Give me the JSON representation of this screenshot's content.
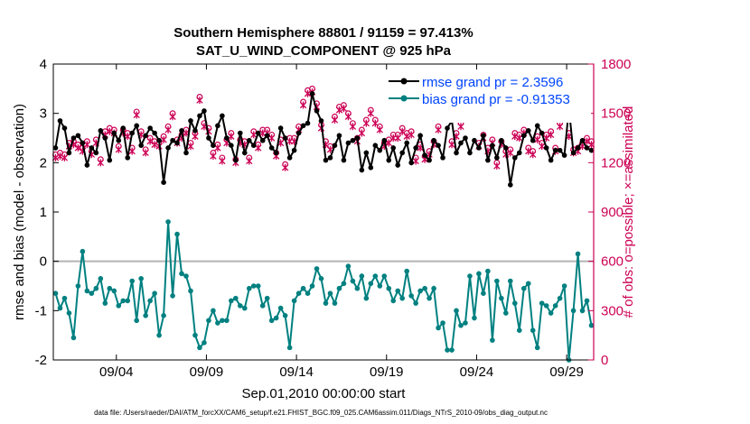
{
  "chart_data": {
    "type": "line",
    "title_line1": "Southern Hemisphere 88801 / 91159 = 97.413%",
    "title_line2": "SAT_U_WIND_COMPONENT @ 925 hPa",
    "xlabel": "Sep.01,2010 00:00:00 start",
    "ylabel_left": "rmse and bias (model - observation)",
    "ylabel_right": "# of obs: o=possible; ×=assimilated",
    "footnote": "data file: /Users/raeder/DAI/ATM_forcXX/CAM6_setup/f.e21.FHIST_BGC.f09_025.CAM6assim.011/Diags_NTrS_2010-09/obs_diag_output.nc",
    "xlim": [
      0,
      30
    ],
    "ylim_left": [
      -2,
      4
    ],
    "ylim_right": [
      0,
      1800
    ],
    "xticks": [
      3.5,
      8.5,
      13.5,
      18.5,
      23.5,
      28.5
    ],
    "xtick_labels": [
      "09/04",
      "09/09",
      "09/14",
      "09/19",
      "09/24",
      "09/29"
    ],
    "yticks_left": [
      -2,
      -1,
      0,
      1,
      2,
      3,
      4
    ],
    "yticks_left_labels": [
      "-2",
      "-1",
      "0",
      "1",
      "2",
      "3",
      "4"
    ],
    "yticks_right": [
      0,
      300,
      600,
      900,
      1200,
      1500,
      1800
    ],
    "yticks_right_labels": [
      "0",
      "300",
      "600",
      "900",
      "1200",
      "1500",
      "1800"
    ],
    "legend": {
      "rmse": "rmse grand pr = 2.3596",
      "bias": "bias grand pr = -0.91353"
    },
    "colors": {
      "rmse": "#000000",
      "bias": "#008080",
      "obs": "#cc0055",
      "zero": "#b3b3b3",
      "legend_text": "#0044ff"
    },
    "times": [
      0.125,
      0.375,
      0.625,
      0.875,
      1.125,
      1.375,
      1.625,
      1.875,
      2.125,
      2.375,
      2.625,
      2.875,
      3.125,
      3.375,
      3.625,
      3.875,
      4.125,
      4.375,
      4.625,
      4.875,
      5.125,
      5.375,
      5.625,
      5.875,
      6.125,
      6.375,
      6.625,
      6.875,
      7.125,
      7.375,
      7.625,
      7.875,
      8.125,
      8.375,
      8.625,
      8.875,
      9.125,
      9.375,
      9.625,
      9.875,
      10.125,
      10.375,
      10.625,
      10.875,
      11.125,
      11.375,
      11.625,
      11.875,
      12.125,
      12.375,
      12.625,
      12.875,
      13.125,
      13.375,
      13.625,
      13.875,
      14.125,
      14.375,
      14.625,
      14.875,
      15.125,
      15.375,
      15.625,
      15.875,
      16.125,
      16.375,
      16.625,
      16.875,
      17.125,
      17.375,
      17.625,
      17.875,
      18.125,
      18.375,
      18.625,
      18.875,
      19.125,
      19.375,
      19.625,
      19.875,
      20.125,
      20.375,
      20.625,
      20.875,
      21.125,
      21.375,
      21.625,
      21.875,
      22.125,
      22.375,
      22.625,
      22.875,
      23.125,
      23.375,
      23.625,
      23.875,
      24.125,
      24.375,
      24.625,
      24.875,
      25.125,
      25.375,
      25.625,
      25.875,
      26.125,
      26.375,
      26.625,
      26.875,
      27.125,
      27.375,
      27.625,
      27.875,
      28.125,
      28.375,
      28.625,
      28.875,
      29.125,
      29.375,
      29.625,
      29.875
    ],
    "rmse": [
      2.3,
      2.85,
      2.7,
      2.2,
      2.5,
      2.55,
      2.4,
      1.95,
      2.3,
      2.2,
      2.65,
      2.5,
      2.05,
      2.6,
      2.45,
      2.7,
      2.1,
      2.6,
      2.75,
      2.35,
      2.55,
      2.7,
      2.6,
      2.45,
      1.6,
      2.3,
      2.45,
      2.4,
      2.65,
      2.2,
      2.85,
      2.65,
      2.95,
      3.05,
      2.5,
      2.35,
      2.75,
      2.95,
      2.5,
      2.35,
      2.05,
      2.6,
      2.2,
      2.45,
      2.35,
      2.6,
      2.45,
      2.55,
      2.3,
      2.2,
      2.7,
      2.5,
      2.1,
      2.25,
      2.6,
      2.75,
      2.8,
      3.4,
      3.05,
      2.85,
      2.05,
      2.1,
      2.35,
      2.55,
      2.05,
      2.4,
      2.45,
      2.5,
      1.85,
      2.2,
      1.9,
      2.35,
      2.25,
      2.45,
      2.05,
      2.3,
      1.95,
      2.2,
      2.4,
      2.0,
      2.3,
      2.55,
      2.15,
      2.05,
      2.45,
      2.35,
      2.1,
      2.7,
      2.85,
      2.2,
      2.4,
      2.5,
      2.2,
      2.45,
      2.3,
      2.55,
      2.05,
      2.35,
      2.1,
      2.45,
      2.3,
      1.55,
      2.1,
      2.2,
      2.55,
      2.65,
      2.45,
      2.75,
      2.6,
      2.3,
      2.05,
      2.25,
      2.25,
      2.15,
      3.1,
      2.2,
      2.3,
      2.45,
      2.3,
      2.25
    ],
    "bias": [
      -0.65,
      -0.95,
      -0.75,
      -1.05,
      -1.55,
      -0.5,
      0.2,
      -0.6,
      -0.65,
      -0.55,
      -0.35,
      -0.85,
      -0.55,
      -0.6,
      -0.9,
      -0.8,
      -0.8,
      -0.4,
      -1.2,
      -0.35,
      -1.1,
      -0.8,
      -0.65,
      -1.5,
      -1.1,
      0.8,
      -0.7,
      0.55,
      -0.25,
      -0.3,
      -0.6,
      -1.5,
      -1.75,
      -1.65,
      -1.2,
      -1.0,
      -1.25,
      -1.2,
      -1.2,
      -0.8,
      -0.75,
      -0.9,
      -0.95,
      -0.55,
      -0.5,
      -0.5,
      -0.9,
      -0.75,
      -1.2,
      -1.15,
      -0.95,
      -1.1,
      -1.75,
      -0.8,
      -0.65,
      -0.55,
      -0.65,
      -0.5,
      -0.15,
      -0.35,
      -0.85,
      -0.65,
      -0.85,
      -0.55,
      -0.45,
      -0.1,
      -0.4,
      -0.55,
      -0.3,
      -0.75,
      -0.45,
      -0.3,
      -0.5,
      -0.3,
      -0.55,
      -0.8,
      -0.6,
      -0.75,
      -0.2,
      -0.7,
      -0.85,
      -0.6,
      -0.55,
      -0.75,
      -0.55,
      -1.35,
      -1.25,
      -1.8,
      -1.8,
      -1.0,
      -1.3,
      -1.25,
      -0.3,
      -1.15,
      -0.25,
      -0.65,
      -0.2,
      -1.6,
      -0.4,
      -0.75,
      -1.05,
      -0.4,
      -0.85,
      -1.4,
      -0.55,
      -0.45,
      -1.4,
      -1.75,
      -0.85,
      -0.9,
      -1.05,
      -0.9,
      -0.75,
      -0.5,
      -2.0,
      -1.0,
      0.15,
      -1.0,
      -0.8,
      -1.3
    ],
    "obs_possible": [
      1250,
      1260,
      1250,
      1320,
      1330,
      1310,
      1290,
      1330,
      1270,
      1340,
      1220,
      1390,
      1410,
      1400,
      1300,
      1400,
      1380,
      1290,
      1510,
      1390,
      1280,
      1350,
      1330,
      1320,
      1360,
      1420,
      1500,
      1340,
      1370,
      1400,
      1320,
      1380,
      1600,
      1440,
      1410,
      1260,
      1310,
      1230,
      1340,
      1380,
      1220,
      1340,
      1330,
      1230,
      1390,
      1310,
      1400,
      1400,
      1370,
      1260,
      1340,
      1190,
      1350,
      1350,
      1420,
      1570,
      1640,
      1650,
      1560,
      1430,
      1330,
      1300,
      1480,
      1540,
      1550,
      1500,
      1440,
      1350,
      1400,
      1460,
      1520,
      1460,
      1420,
      1320,
      1340,
      1370,
      1370,
      1410,
      1380,
      1390,
      1230,
      1310,
      1240,
      1270,
      1330,
      1420,
      1520,
      1570,
      1330,
      1380,
      1440,
      1560,
      1500,
      1540,
      1320,
      1370,
      1290,
      1340,
      1200,
      1330,
      1270,
      1280,
      1380,
      1370,
      1400,
      1290,
      1270,
      1360,
      1320,
      1370,
      1390,
      1290,
      1440,
      1570,
      1380,
      1280,
      1290,
      1320,
      1350,
      1330
    ],
    "obs_assimilated": [
      1230,
      1240,
      1230,
      1300,
      1310,
      1290,
      1270,
      1310,
      1250,
      1320,
      1200,
      1370,
      1390,
      1380,
      1280,
      1380,
      1360,
      1270,
      1490,
      1370,
      1260,
      1330,
      1310,
      1300,
      1340,
      1400,
      1480,
      1320,
      1350,
      1380,
      1300,
      1360,
      1580,
      1420,
      1390,
      1240,
      1290,
      1210,
      1320,
      1360,
      1200,
      1320,
      1310,
      1210,
      1370,
      1290,
      1380,
      1380,
      1350,
      1240,
      1320,
      1170,
      1330,
      1330,
      1400,
      1550,
      1620,
      1630,
      1540,
      1410,
      1310,
      1280,
      1460,
      1520,
      1530,
      1480,
      1420,
      1330,
      1380,
      1440,
      1500,
      1440,
      1400,
      1300,
      1320,
      1350,
      1350,
      1390,
      1360,
      1370,
      1210,
      1290,
      1220,
      1250,
      1310,
      1400,
      1500,
      1550,
      1310,
      1360,
      1420,
      1540,
      1480,
      1520,
      1300,
      1350,
      1270,
      1320,
      1180,
      1310,
      1250,
      1260,
      1360,
      1350,
      1380,
      1270,
      1250,
      1340,
      1300,
      1350,
      1370,
      1270,
      1420,
      1550,
      1360,
      1260,
      1270,
      1300,
      1330,
      1310
    ]
  }
}
